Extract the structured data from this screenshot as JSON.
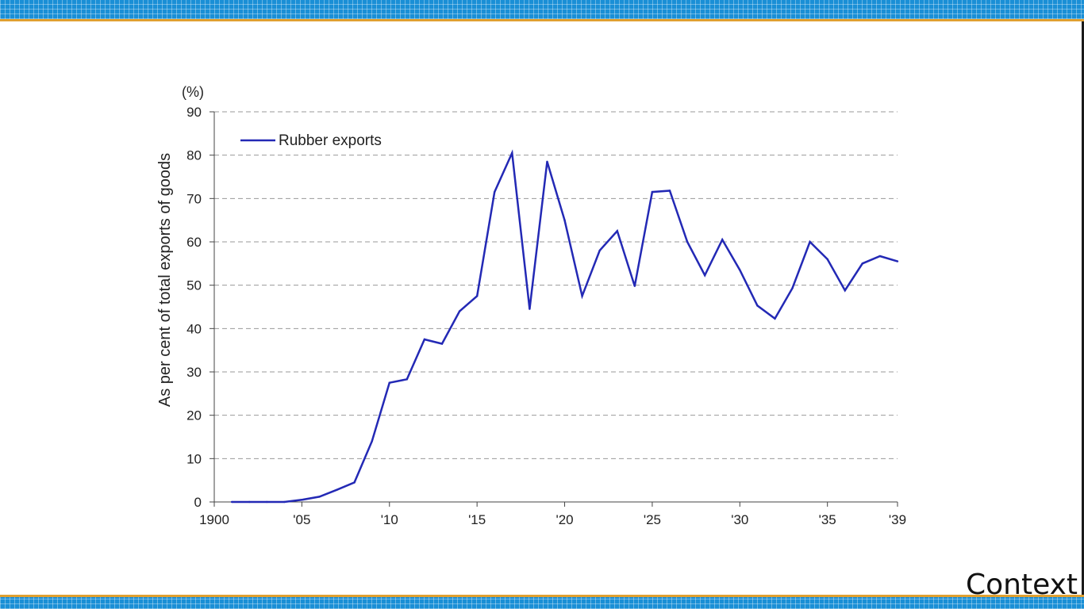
{
  "footer": {
    "label": "Context"
  },
  "colors": {
    "band": "#1a8fd6",
    "band_accent": "#e0a030",
    "series": "#2329b5",
    "grid": "#999999"
  },
  "chart_data": {
    "type": "line",
    "title": "",
    "unit_label": "(%)",
    "ylabel": "As per cent of total exports of goods",
    "xlabel": "",
    "ylim": [
      0,
      90
    ],
    "xlim": [
      1900,
      1939
    ],
    "yticks": [
      0,
      10,
      20,
      30,
      40,
      50,
      60,
      70,
      80,
      90
    ],
    "xticks": [
      {
        "value": 1900,
        "label": "1900"
      },
      {
        "value": 1905,
        "label": "'05"
      },
      {
        "value": 1910,
        "label": "'10"
      },
      {
        "value": 1915,
        "label": "'15"
      },
      {
        "value": 1920,
        "label": "'20"
      },
      {
        "value": 1925,
        "label": "'25"
      },
      {
        "value": 1930,
        "label": "'30"
      },
      {
        "value": 1935,
        "label": "'35"
      },
      {
        "value": 1939,
        "label": "'39"
      }
    ],
    "grid": true,
    "legend": "top-left",
    "series": [
      {
        "name": "Rubber exports",
        "color": "#2329b5",
        "x": [
          1901,
          1902,
          1903,
          1904,
          1905,
          1906,
          1907,
          1908,
          1909,
          1910,
          1911,
          1912,
          1913,
          1914,
          1915,
          1916,
          1917,
          1918,
          1919,
          1920,
          1921,
          1922,
          1923,
          1924,
          1925,
          1926,
          1927,
          1928,
          1929,
          1930,
          1931,
          1932,
          1933,
          1934,
          1935,
          1936,
          1937,
          1938,
          1939
        ],
        "y": [
          0,
          0,
          0,
          0,
          0.5,
          1.2,
          2.8,
          4.5,
          14,
          27.5,
          28.3,
          37.5,
          36.5,
          44,
          47.5,
          71.5,
          80.5,
          44.5,
          78.5,
          65,
          47.5,
          58,
          62.5,
          49.8,
          71.5,
          71.8,
          60,
          52.3,
          60.5,
          53.5,
          45.3,
          42.3,
          49.3,
          60,
          56,
          48.8,
          55,
          56.7,
          55.5
        ]
      }
    ]
  }
}
